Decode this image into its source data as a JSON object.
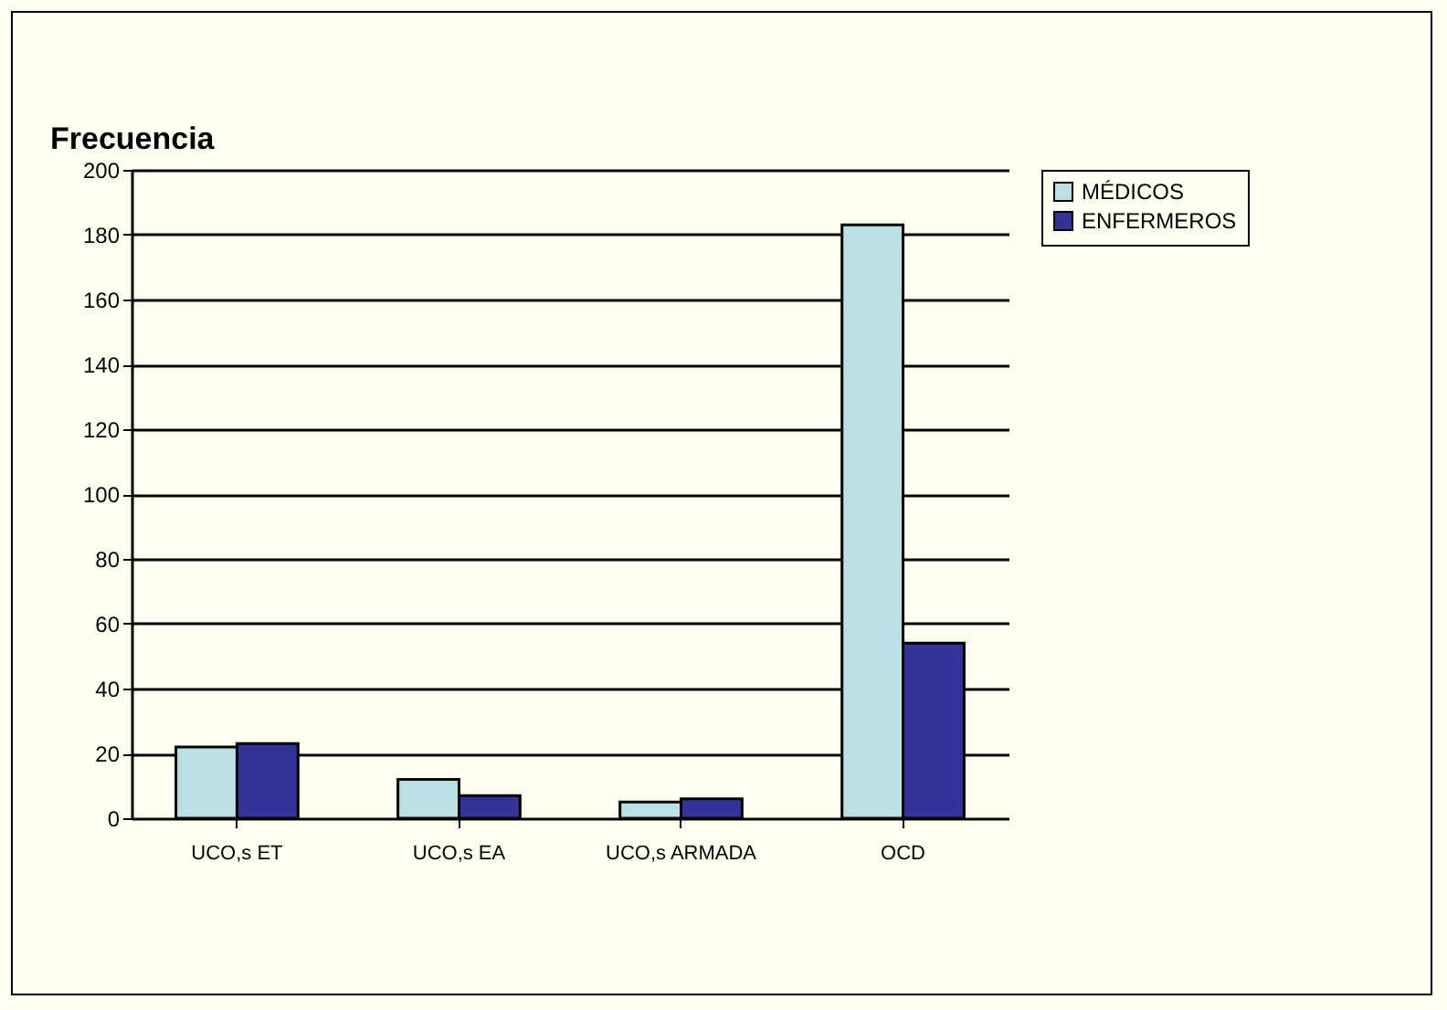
{
  "chart_data": {
    "type": "bar",
    "ylabel": "Frecuencia",
    "categories": [
      "UCO,s ET",
      "UCO,s EA",
      "UCO,s ARMADA",
      "OCD"
    ],
    "series": [
      {
        "name": "MÉDICOS",
        "color": "#bbe0e3",
        "values": [
          22,
          12,
          5,
          183
        ]
      },
      {
        "name": "ENFERMEROS",
        "color": "#333399",
        "values": [
          23,
          7,
          6,
          54
        ]
      }
    ],
    "ylim": [
      0,
      200
    ],
    "yticks": [
      0,
      20,
      40,
      60,
      80,
      100,
      120,
      140,
      160,
      180,
      200
    ],
    "grid": "y",
    "legend": "right"
  }
}
